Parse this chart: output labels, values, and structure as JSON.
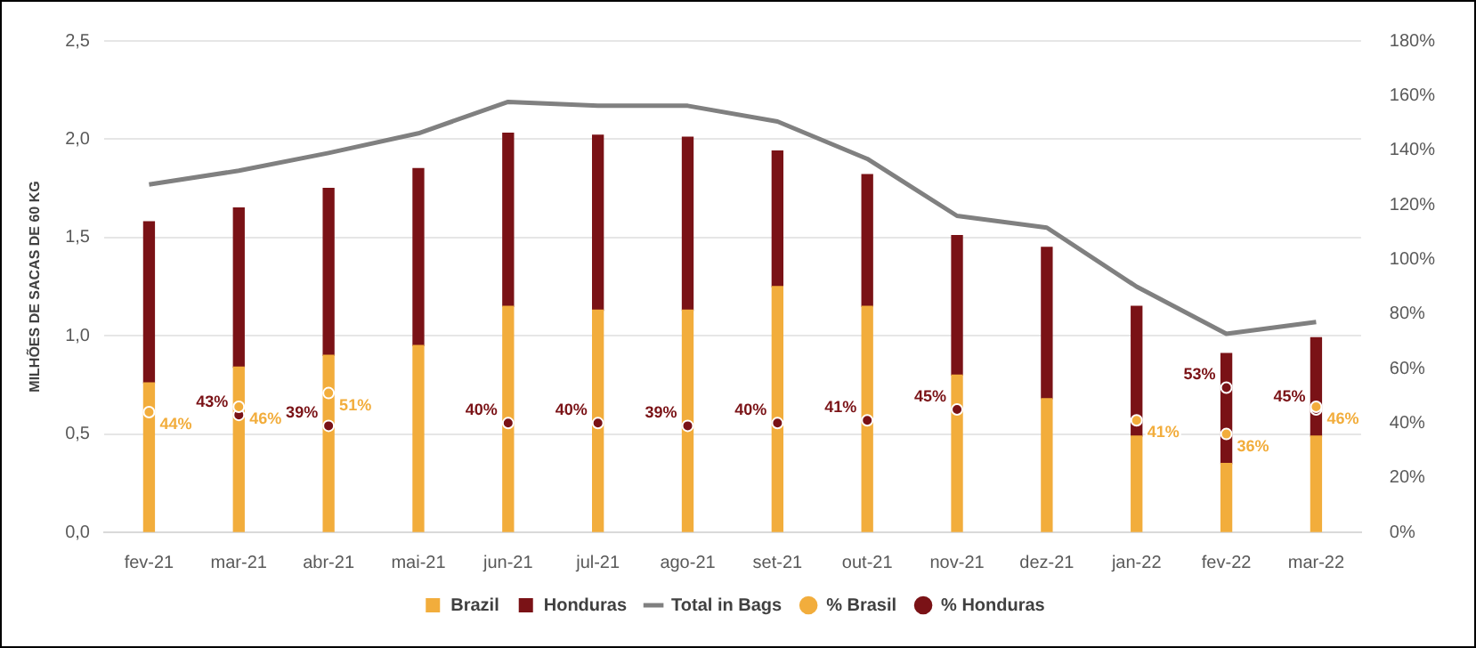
{
  "chart_data": {
    "type": "bar",
    "stacked": true,
    "ylabel": "MILHÕES DE SACAS DE 60 KG",
    "categories": [
      "fev-21",
      "mar-21",
      "abr-21",
      "mai-21",
      "jun-21",
      "jul-21",
      "ago-21",
      "set-21",
      "out-21",
      "nov-21",
      "dez-21",
      "jan-22",
      "fev-22",
      "mar-22"
    ],
    "series": [
      {
        "name": "Brazil",
        "type": "bar",
        "color": "#f2ad3c",
        "values": [
          0.76,
          0.84,
          0.9,
          0.95,
          1.15,
          1.13,
          1.13,
          1.25,
          1.15,
          0.8,
          0.68,
          0.49,
          0.35,
          0.49
        ]
      },
      {
        "name": "Honduras",
        "type": "bar",
        "color": "#7a1216",
        "values": [
          0.82,
          0.81,
          0.85,
          0.9,
          0.88,
          0.89,
          0.88,
          0.69,
          0.67,
          0.71,
          0.77,
          0.66,
          0.56,
          0.5
        ]
      },
      {
        "name": "Total in Bags",
        "type": "line",
        "color": "#808080",
        "values": [
          1.77,
          1.84,
          1.93,
          2.03,
          2.19,
          2.17,
          2.17,
          2.09,
          1.9,
          1.61,
          1.55,
          1.25,
          1.01,
          1.07
        ]
      },
      {
        "name": "% Brasil",
        "type": "scatter",
        "marker": "circle",
        "axis": "y2",
        "color": "#f2ad3c",
        "values": [
          44,
          46,
          51,
          null,
          null,
          null,
          null,
          null,
          null,
          null,
          null,
          41,
          36,
          46
        ],
        "value_labels": [
          "44%",
          "46%",
          "51%",
          null,
          null,
          null,
          null,
          null,
          null,
          null,
          null,
          "41%",
          "36%",
          "46%"
        ]
      },
      {
        "name": "% Honduras",
        "type": "scatter",
        "marker": "circle",
        "axis": "y2",
        "color": "#7a1216",
        "values": [
          null,
          43,
          39,
          null,
          40,
          40,
          39,
          40,
          41,
          45,
          null,
          null,
          53,
          45
        ],
        "value_labels": [
          null,
          "43%",
          "39%",
          null,
          "40%",
          "40%",
          "39%",
          "40%",
          "41%",
          "45%",
          null,
          null,
          "53%",
          "45%"
        ]
      }
    ],
    "ylim": [
      0,
      2.5
    ],
    "yticks": [
      {
        "value": 0,
        "label": "0,0"
      },
      {
        "value": 0.5,
        "label": "0,5"
      },
      {
        "value": 1,
        "label": "1,0"
      },
      {
        "value": 1.5,
        "label": "1,5"
      },
      {
        "value": 2,
        "label": "2,0"
      },
      {
        "value": 2.5,
        "label": "2,5"
      }
    ],
    "y2lim": [
      0,
      180
    ],
    "y2ticks": [
      {
        "value": 0,
        "label": "0%"
      },
      {
        "value": 20,
        "label": "20%"
      },
      {
        "value": 40,
        "label": "40%"
      },
      {
        "value": 60,
        "label": "60%"
      },
      {
        "value": 80,
        "label": "80%"
      },
      {
        "value": 100,
        "label": "100%"
      },
      {
        "value": 120,
        "label": "120%"
      },
      {
        "value": 140,
        "label": "140%"
      },
      {
        "value": 160,
        "label": "160%"
      },
      {
        "value": 180,
        "label": "180%"
      }
    ],
    "grid": "y",
    "legend": "bottom"
  }
}
